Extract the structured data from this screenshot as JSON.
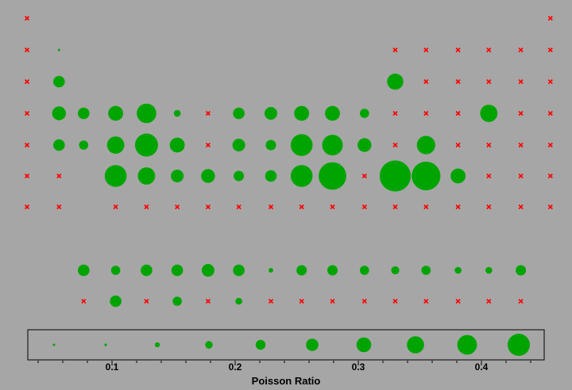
{
  "chart_data": {
    "type": "scatter",
    "title": "",
    "xlabel": "Poisson Ratio",
    "ylabel": "",
    "grid": false,
    "x_ticks": [
      0.1,
      0.2,
      0.3,
      0.4
    ],
    "xlim": [
      0.03,
      0.46
    ],
    "series_colors": {
      "present": "#00a400",
      "absent": "#ff0000"
    },
    "marker_shapes": {
      "present": "circle",
      "absent": "x"
    },
    "points": [
      {
        "row": 1,
        "x": 0.031,
        "size": 0,
        "present": false
      },
      {
        "row": 1,
        "x": 0.456,
        "size": 0,
        "present": false
      },
      {
        "row": 2,
        "x": 0.031,
        "size": 0,
        "present": false
      },
      {
        "row": 2,
        "x": 0.057,
        "size": 0.5,
        "present": true
      },
      {
        "row": 2,
        "x": 0.33,
        "size": 0,
        "present": false
      },
      {
        "row": 2,
        "x": 0.355,
        "size": 0,
        "present": false
      },
      {
        "row": 2,
        "x": 0.381,
        "size": 0,
        "present": false
      },
      {
        "row": 2,
        "x": 0.406,
        "size": 0,
        "present": false
      },
      {
        "row": 2,
        "x": 0.432,
        "size": 0,
        "present": false
      },
      {
        "row": 2,
        "x": 0.456,
        "size": 0,
        "present": false
      },
      {
        "row": 3,
        "x": 0.031,
        "size": 0,
        "present": false
      },
      {
        "row": 3,
        "x": 0.057,
        "size": 5,
        "present": true
      },
      {
        "row": 3,
        "x": 0.33,
        "size": 7,
        "present": true
      },
      {
        "row": 3,
        "x": 0.355,
        "size": 0,
        "present": false
      },
      {
        "row": 3,
        "x": 0.381,
        "size": 0,
        "present": false
      },
      {
        "row": 3,
        "x": 0.406,
        "size": 0,
        "present": false
      },
      {
        "row": 3,
        "x": 0.432,
        "size": 0,
        "present": false
      },
      {
        "row": 3,
        "x": 0.456,
        "size": 0,
        "present": false
      },
      {
        "row": 4,
        "x": 0.031,
        "size": 0,
        "present": false
      },
      {
        "row": 4,
        "x": 0.057,
        "size": 6,
        "present": true
      },
      {
        "row": 4,
        "x": 0.077,
        "size": 5,
        "present": true
      },
      {
        "row": 4,
        "x": 0.103,
        "size": 6.5,
        "present": true
      },
      {
        "row": 4,
        "x": 0.128,
        "size": 8.5,
        "present": true
      },
      {
        "row": 4,
        "x": 0.153,
        "size": 3,
        "present": true
      },
      {
        "row": 4,
        "x": 0.178,
        "size": 0,
        "present": false
      },
      {
        "row": 4,
        "x": 0.203,
        "size": 5,
        "present": true
      },
      {
        "row": 4,
        "x": 0.229,
        "size": 5.5,
        "present": true
      },
      {
        "row": 4,
        "x": 0.254,
        "size": 6.5,
        "present": true
      },
      {
        "row": 4,
        "x": 0.279,
        "size": 6.5,
        "present": true
      },
      {
        "row": 4,
        "x": 0.305,
        "size": 4,
        "present": true
      },
      {
        "row": 4,
        "x": 0.33,
        "size": 0,
        "present": false
      },
      {
        "row": 4,
        "x": 0.355,
        "size": 0,
        "present": false
      },
      {
        "row": 4,
        "x": 0.381,
        "size": 0,
        "present": false
      },
      {
        "row": 4,
        "x": 0.406,
        "size": 7.5,
        "present": true
      },
      {
        "row": 4,
        "x": 0.432,
        "size": 0,
        "present": false
      },
      {
        "row": 4,
        "x": 0.456,
        "size": 0,
        "present": false
      },
      {
        "row": 5,
        "x": 0.031,
        "size": 0,
        "present": false
      },
      {
        "row": 5,
        "x": 0.057,
        "size": 5,
        "present": true
      },
      {
        "row": 5,
        "x": 0.077,
        "size": 4,
        "present": true
      },
      {
        "row": 5,
        "x": 0.103,
        "size": 7.5,
        "present": true
      },
      {
        "row": 5,
        "x": 0.128,
        "size": 10,
        "present": true
      },
      {
        "row": 5,
        "x": 0.153,
        "size": 6.5,
        "present": true
      },
      {
        "row": 5,
        "x": 0.178,
        "size": 0,
        "present": false
      },
      {
        "row": 5,
        "x": 0.203,
        "size": 5.5,
        "present": true
      },
      {
        "row": 5,
        "x": 0.229,
        "size": 4.5,
        "present": true
      },
      {
        "row": 5,
        "x": 0.254,
        "size": 9.5,
        "present": true
      },
      {
        "row": 5,
        "x": 0.279,
        "size": 9,
        "present": true
      },
      {
        "row": 5,
        "x": 0.305,
        "size": 6,
        "present": true
      },
      {
        "row": 5,
        "x": 0.33,
        "size": 0,
        "present": false
      },
      {
        "row": 5,
        "x": 0.355,
        "size": 8,
        "present": true
      },
      {
        "row": 5,
        "x": 0.381,
        "size": 0,
        "present": false
      },
      {
        "row": 5,
        "x": 0.406,
        "size": 0,
        "present": false
      },
      {
        "row": 5,
        "x": 0.432,
        "size": 0,
        "present": false
      },
      {
        "row": 5,
        "x": 0.456,
        "size": 0,
        "present": false
      },
      {
        "row": 6,
        "x": 0.031,
        "size": 0,
        "present": false
      },
      {
        "row": 6,
        "x": 0.057,
        "size": 0,
        "present": false
      },
      {
        "row": 6,
        "x": 0.103,
        "size": 9.5,
        "present": true
      },
      {
        "row": 6,
        "x": 0.128,
        "size": 7.5,
        "present": true
      },
      {
        "row": 6,
        "x": 0.153,
        "size": 5.5,
        "present": true
      },
      {
        "row": 6,
        "x": 0.178,
        "size": 6,
        "present": true
      },
      {
        "row": 6,
        "x": 0.203,
        "size": 4.5,
        "present": true
      },
      {
        "row": 6,
        "x": 0.229,
        "size": 5,
        "present": true
      },
      {
        "row": 6,
        "x": 0.254,
        "size": 9.5,
        "present": true
      },
      {
        "row": 6,
        "x": 0.279,
        "size": 12,
        "present": true
      },
      {
        "row": 6,
        "x": 0.305,
        "size": 0,
        "present": false
      },
      {
        "row": 6,
        "x": 0.33,
        "size": 13.5,
        "present": true
      },
      {
        "row": 6,
        "x": 0.355,
        "size": 12.5,
        "present": true
      },
      {
        "row": 6,
        "x": 0.381,
        "size": 6.5,
        "present": true
      },
      {
        "row": 6,
        "x": 0.406,
        "size": 0,
        "present": false
      },
      {
        "row": 6,
        "x": 0.432,
        "size": 0,
        "present": false
      },
      {
        "row": 6,
        "x": 0.456,
        "size": 0,
        "present": false
      },
      {
        "row": 7,
        "x": 0.031,
        "size": 0,
        "present": false
      },
      {
        "row": 7,
        "x": 0.057,
        "size": 0,
        "present": false
      },
      {
        "row": 7,
        "x": 0.103,
        "size": 0,
        "present": false
      },
      {
        "row": 7,
        "x": 0.128,
        "size": 0,
        "present": false
      },
      {
        "row": 7,
        "x": 0.153,
        "size": 0,
        "present": false
      },
      {
        "row": 7,
        "x": 0.178,
        "size": 0,
        "present": false
      },
      {
        "row": 7,
        "x": 0.203,
        "size": 0,
        "present": false
      },
      {
        "row": 7,
        "x": 0.229,
        "size": 0,
        "present": false
      },
      {
        "row": 7,
        "x": 0.254,
        "size": 0,
        "present": false
      },
      {
        "row": 7,
        "x": 0.279,
        "size": 0,
        "present": false
      },
      {
        "row": 7,
        "x": 0.305,
        "size": 0,
        "present": false
      },
      {
        "row": 7,
        "x": 0.33,
        "size": 0,
        "present": false
      },
      {
        "row": 7,
        "x": 0.355,
        "size": 0,
        "present": false
      },
      {
        "row": 7,
        "x": 0.381,
        "size": 0,
        "present": false
      },
      {
        "row": 7,
        "x": 0.406,
        "size": 0,
        "present": false
      },
      {
        "row": 7,
        "x": 0.432,
        "size": 0,
        "present": false
      },
      {
        "row": 7,
        "x": 0.456,
        "size": 0,
        "present": false
      },
      {
        "row": 8,
        "x": 0.077,
        "size": 5,
        "present": true
      },
      {
        "row": 8,
        "x": 0.103,
        "size": 4,
        "present": true
      },
      {
        "row": 8,
        "x": 0.128,
        "size": 5,
        "present": true
      },
      {
        "row": 8,
        "x": 0.153,
        "size": 5,
        "present": true
      },
      {
        "row": 8,
        "x": 0.178,
        "size": 5.5,
        "present": true
      },
      {
        "row": 8,
        "x": 0.203,
        "size": 5,
        "present": true
      },
      {
        "row": 8,
        "x": 0.229,
        "size": 2,
        "present": true
      },
      {
        "row": 8,
        "x": 0.254,
        "size": 4.5,
        "present": true
      },
      {
        "row": 8,
        "x": 0.279,
        "size": 4.5,
        "present": true
      },
      {
        "row": 8,
        "x": 0.305,
        "size": 4,
        "present": true
      },
      {
        "row": 8,
        "x": 0.33,
        "size": 3.5,
        "present": true
      },
      {
        "row": 8,
        "x": 0.355,
        "size": 4,
        "present": true
      },
      {
        "row": 8,
        "x": 0.381,
        "size": 3,
        "present": true
      },
      {
        "row": 8,
        "x": 0.406,
        "size": 3,
        "present": true
      },
      {
        "row": 8,
        "x": 0.432,
        "size": 4.5,
        "present": true
      },
      {
        "row": 9,
        "x": 0.077,
        "size": 0,
        "present": false
      },
      {
        "row": 9,
        "x": 0.103,
        "size": 5,
        "present": true
      },
      {
        "row": 9,
        "x": 0.128,
        "size": 0,
        "present": false
      },
      {
        "row": 9,
        "x": 0.153,
        "size": 4,
        "present": true
      },
      {
        "row": 9,
        "x": 0.178,
        "size": 0,
        "present": false
      },
      {
        "row": 9,
        "x": 0.203,
        "size": 3,
        "present": true
      },
      {
        "row": 9,
        "x": 0.229,
        "size": 0,
        "present": false
      },
      {
        "row": 9,
        "x": 0.254,
        "size": 0,
        "present": false
      },
      {
        "row": 9,
        "x": 0.279,
        "size": 0,
        "present": false
      },
      {
        "row": 9,
        "x": 0.305,
        "size": 0,
        "present": false
      },
      {
        "row": 9,
        "x": 0.33,
        "size": 0,
        "present": false
      },
      {
        "row": 9,
        "x": 0.355,
        "size": 0,
        "present": false
      },
      {
        "row": 9,
        "x": 0.381,
        "size": 0,
        "present": false
      },
      {
        "row": 9,
        "x": 0.406,
        "size": 0,
        "present": false
      },
      {
        "row": 9,
        "x": 0.432,
        "size": 0,
        "present": false
      }
    ],
    "legend": {
      "placement": "bottom",
      "sizes": [
        0.5,
        1,
        2,
        3,
        4,
        5,
        6,
        7,
        8,
        9
      ]
    }
  }
}
